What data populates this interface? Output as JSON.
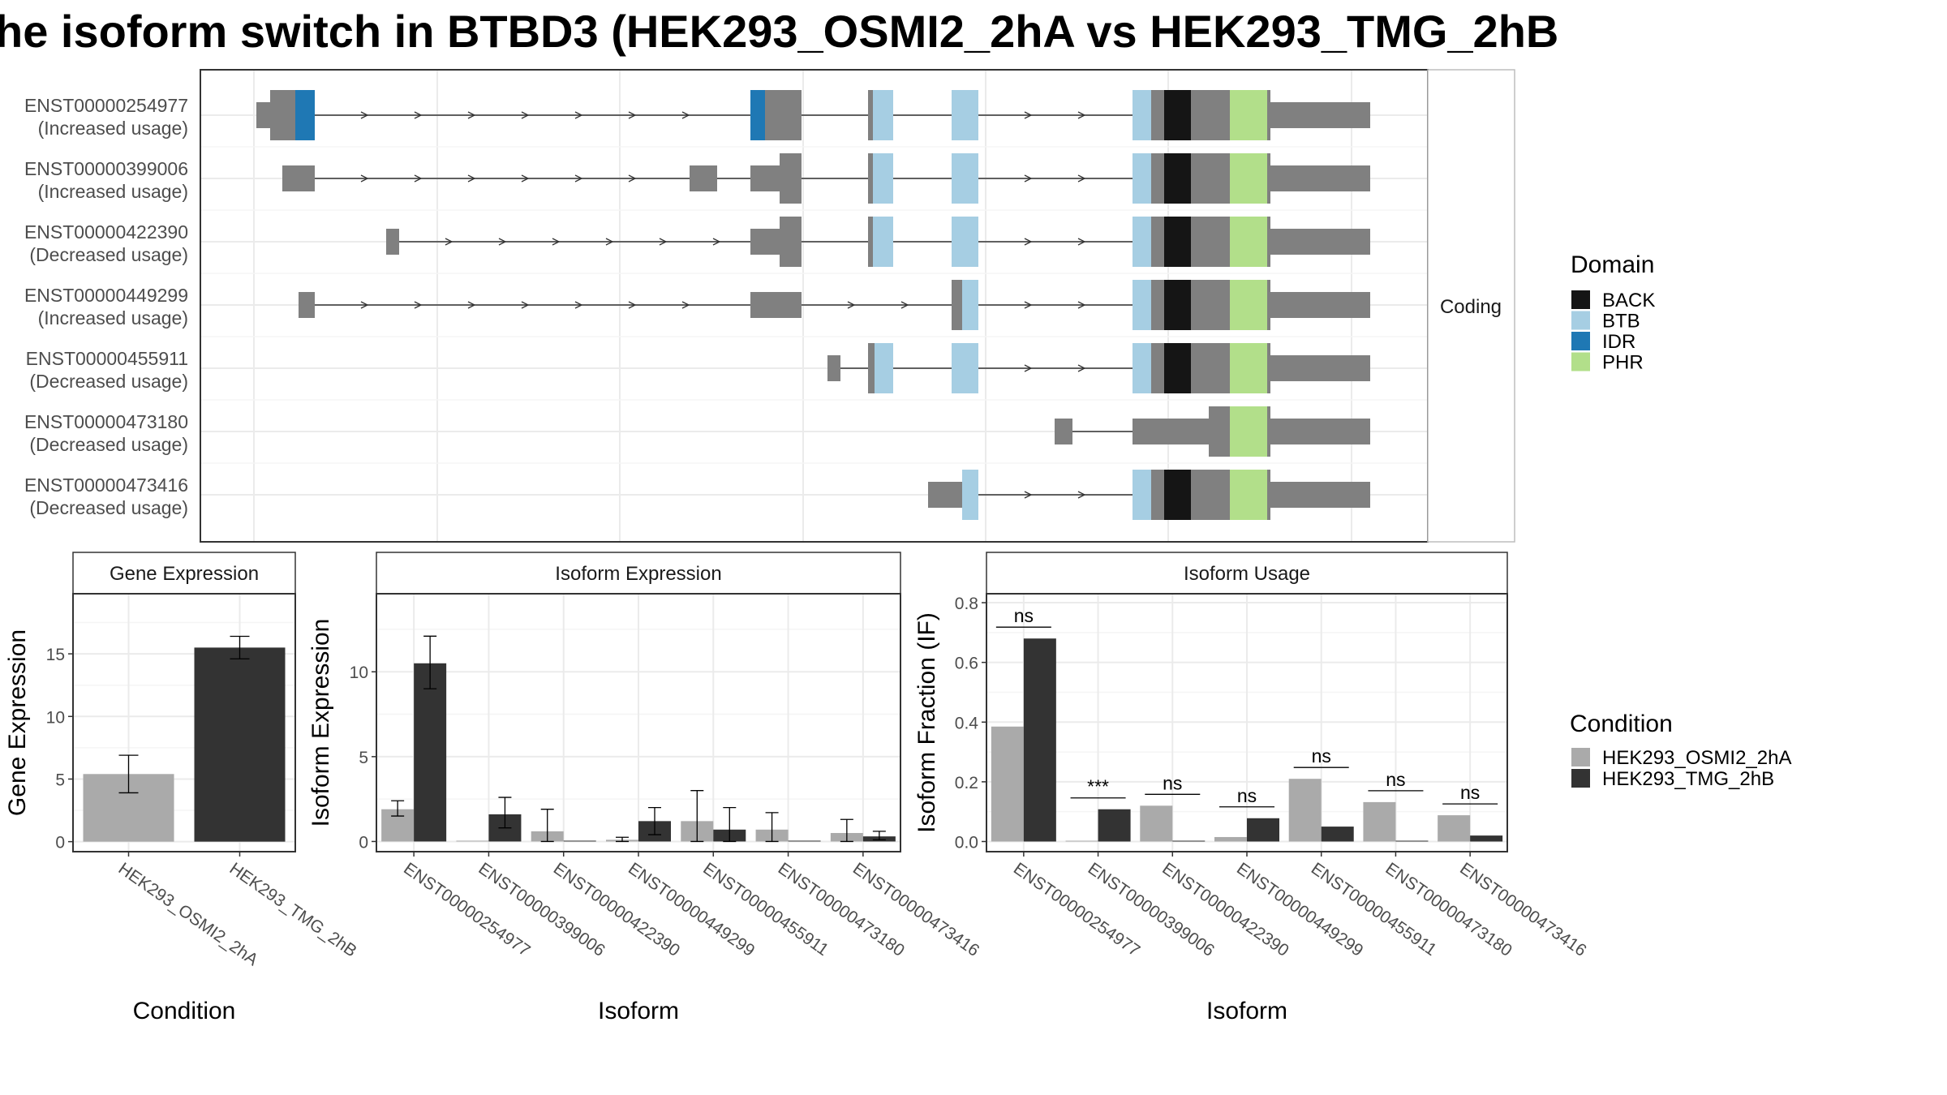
{
  "title": "he isoform switch in BTBD3 (HEK293_OSMI2_2hA vs HEK293_TMG_2hB",
  "colors": {
    "exon": "#808080",
    "BACK": "#151515",
    "BTB": "#a6cee3",
    "IDR": "#1f78b4",
    "PHR": "#b2df8a",
    "cond1": "#aaaaaa",
    "cond2": "#333333"
  },
  "domain_legend": {
    "title": "Domain",
    "entries": [
      "BACK",
      "BTB",
      "IDR",
      "PHR"
    ]
  },
  "condition_legend": {
    "title": "Condition",
    "entries": [
      "HEK293_OSMI2_2hA",
      "HEK293_TMG_2hB"
    ]
  },
  "structure_panel": {
    "facet_label": "Coding",
    "isoforms": [
      {
        "id": "ENST00000254977",
        "note": "(Increased usage)"
      },
      {
        "id": "ENST00000399006",
        "note": "(Increased usage)"
      },
      {
        "id": "ENST00000422390",
        "note": "(Decreased usage)"
      },
      {
        "id": "ENST00000449299",
        "note": "(Increased usage)"
      },
      {
        "id": "ENST00000455911",
        "note": "(Decreased usage)"
      },
      {
        "id": "ENST00000473180",
        "note": "(Decreased usage)"
      },
      {
        "id": "ENST00000473416",
        "note": "(Decreased usage)"
      }
    ]
  },
  "chart_data": [
    {
      "type": "bar",
      "title": "Gene Expression",
      "xlabel": "Condition",
      "ylabel": "Gene Expression",
      "categories": [
        "HEK293_OSMI2_2hA",
        "HEK293_TMG_2hB"
      ],
      "values": [
        5.4,
        15.5
      ],
      "errors": [
        [
          3.9,
          6.9
        ],
        [
          14.6,
          16.4
        ]
      ],
      "ylim": [
        -0.8,
        19.8
      ],
      "yticks": [
        0,
        5,
        10,
        15
      ]
    },
    {
      "type": "bar",
      "title": "Isoform Expression",
      "xlabel": "Isoform",
      "ylabel": "Isoform Expression",
      "categories": [
        "ENST00000254977",
        "ENST00000399006",
        "ENST00000422390",
        "ENST00000449299",
        "ENST00000455911",
        "ENST00000473180",
        "ENST00000473416"
      ],
      "series": [
        {
          "name": "HEK293_OSMI2_2hA",
          "values": [
            1.9,
            0.0,
            0.6,
            0.1,
            1.2,
            0.7,
            0.5
          ],
          "errors": [
            [
              1.5,
              2.4
            ],
            [
              0,
              0
            ],
            [
              0,
              1.9
            ],
            [
              0,
              0.25
            ],
            [
              0,
              3.0
            ],
            [
              0,
              1.7
            ],
            [
              0,
              1.3
            ]
          ]
        },
        {
          "name": "HEK293_TMG_2hB",
          "values": [
            10.5,
            1.6,
            0.0,
            1.2,
            0.7,
            0.0,
            0.3
          ],
          "errors": [
            [
              9.0,
              12.1
            ],
            [
              0.8,
              2.6
            ],
            [
              0,
              0
            ],
            [
              0.4,
              2.0
            ],
            [
              0,
              2.0
            ],
            [
              0,
              0
            ],
            [
              0.1,
              0.6
            ]
          ]
        }
      ],
      "ylim": [
        -0.6,
        14.6
      ],
      "yticks": [
        0,
        5,
        10
      ]
    },
    {
      "type": "bar",
      "title": "Isoform Usage",
      "xlabel": "Isoform",
      "ylabel": "Isoform Fraction (IF)",
      "categories": [
        "ENST00000254977",
        "ENST00000399006",
        "ENST00000422390",
        "ENST00000449299",
        "ENST00000455911",
        "ENST00000473180",
        "ENST00000473416"
      ],
      "series": [
        {
          "name": "HEK293_OSMI2_2hA",
          "values": [
            0.385,
            0.0,
            0.12,
            0.015,
            0.21,
            0.132,
            0.088
          ]
        },
        {
          "name": "HEK293_TMG_2hB",
          "values": [
            0.68,
            0.108,
            0.0,
            0.078,
            0.05,
            0.0,
            0.02
          ]
        }
      ],
      "significance": [
        "ns",
        "***",
        "ns",
        "ns",
        "ns",
        "ns",
        "ns"
      ],
      "ylim": [
        -0.034,
        0.83
      ],
      "yticks": [
        "0.0",
        "0.2",
        "0.4",
        "0.6",
        "0.8"
      ]
    }
  ]
}
